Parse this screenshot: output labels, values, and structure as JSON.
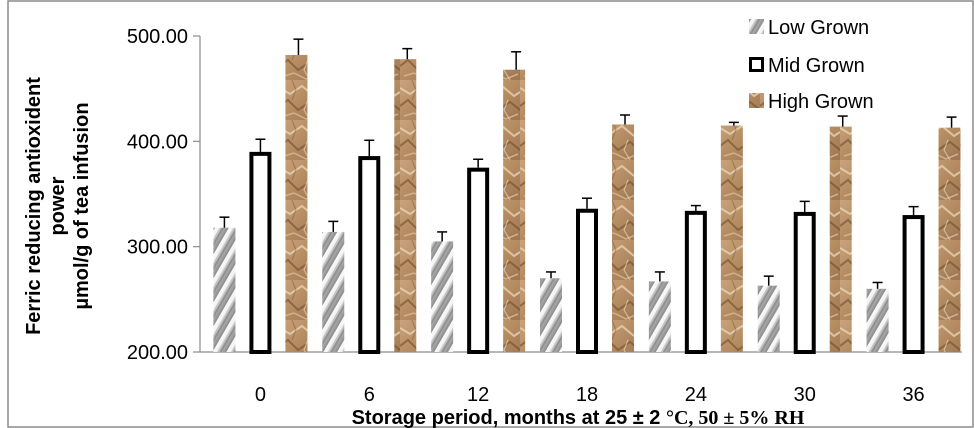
{
  "chart_data": {
    "type": "bar",
    "xlabel": {
      "prefix": "Storage period, months at 25 ± 2 ",
      "suffix": "°C, 50 ± 5% RH"
    },
    "ylabel": {
      "line1": "Ferric reducing antioxident",
      "line2": "power",
      "line3": "µmol/g of tea infusion"
    },
    "categories": [
      "0",
      "6",
      "12",
      "18",
      "24",
      "30",
      "36"
    ],
    "ylim": [
      200,
      500
    ],
    "yticks": [
      "200.00",
      "300.00",
      "400.00",
      "500.00"
    ],
    "ytick_values": [
      200,
      300,
      400,
      500
    ],
    "grid": false,
    "legend_position": "top-right",
    "series": [
      {
        "name": "Low Grown",
        "values": [
          318,
          314,
          305,
          270,
          267,
          263,
          260
        ],
        "errors": [
          10,
          10,
          9,
          6,
          9,
          9,
          6
        ],
        "color": "#9a9a9a",
        "pattern": "diagonal-stripes"
      },
      {
        "name": "Mid Grown",
        "values": [
          390,
          386,
          375,
          336,
          334,
          333,
          330
        ],
        "errors": [
          12,
          15,
          8,
          10,
          5,
          10,
          8
        ],
        "color": "#ffffff",
        "pattern": "outlined"
      },
      {
        "name": "High Grown",
        "values": [
          482,
          478,
          468,
          416,
          415,
          414,
          413
        ],
        "errors": [
          15,
          10,
          17,
          9,
          3,
          10,
          10
        ],
        "color": "#b8926a",
        "pattern": "crumpled-paper"
      }
    ]
  }
}
